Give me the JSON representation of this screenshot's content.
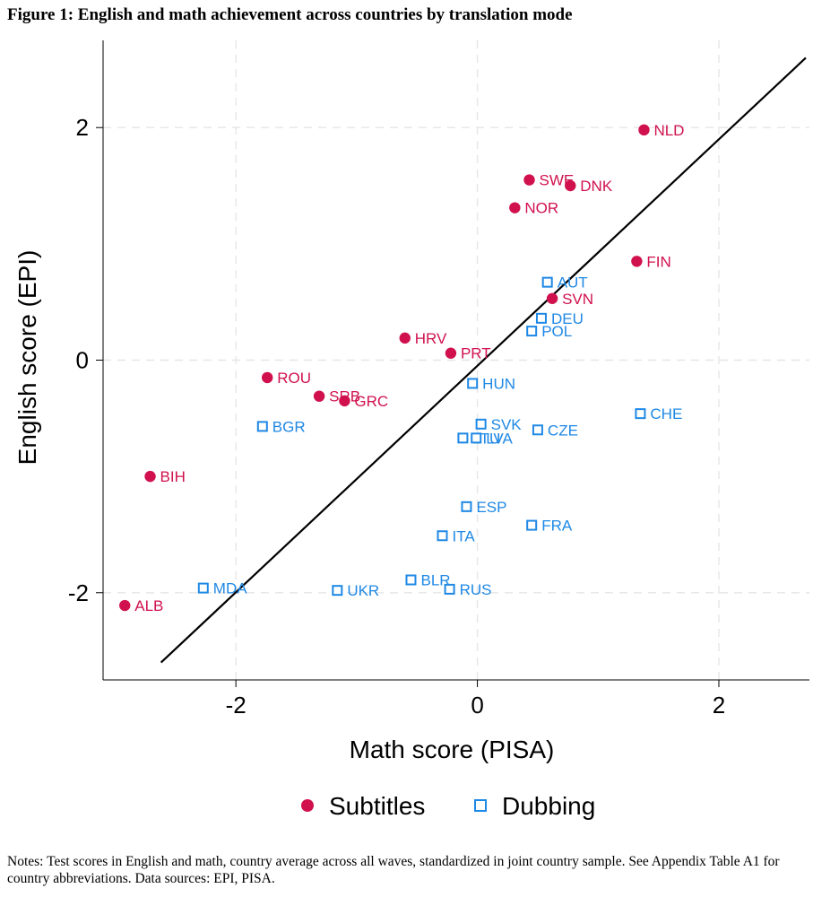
{
  "figure": {
    "title": "Figure 1: English and math achievement across countries by translation mode",
    "notes": "Notes: Test scores in English and math, country average across all waves, standardized in joint country sample. See Appendix Table A1 for country abbreviations. Data sources: EPI, PISA."
  },
  "colors": {
    "subtitles": "#d0114e",
    "dubbing": "#1e88e5",
    "grid": "#e6e6e6",
    "fit_line": "#000000"
  },
  "chart_data": {
    "type": "scatter",
    "xlabel": "Math score (PISA)",
    "ylabel": "English score (EPI)",
    "xlim": [
      -3.1,
      2.75
    ],
    "ylim": [
      -2.75,
      2.75
    ],
    "xticks": [
      -2,
      0,
      2
    ],
    "yticks": [
      -2,
      0,
      2
    ],
    "xtick_labels": [
      "-2",
      "0",
      "2"
    ],
    "ytick_labels": [
      "-2",
      "0",
      "2"
    ],
    "grid": true,
    "legend_position": "bottom",
    "fit_line": {
      "x": [
        -2.62,
        2.72
      ],
      "y": [
        -2.6,
        2.6
      ]
    },
    "series": [
      {
        "name": "Subtitles",
        "marker": "circle",
        "points": [
          {
            "label": "NLD",
            "x": 1.38,
            "y": 1.98
          },
          {
            "label": "SWE",
            "x": 0.43,
            "y": 1.55
          },
          {
            "label": "DNK",
            "x": 0.77,
            "y": 1.5
          },
          {
            "label": "NOR",
            "x": 0.31,
            "y": 1.31
          },
          {
            "label": "FIN",
            "x": 1.32,
            "y": 0.85
          },
          {
            "label": "SVN",
            "x": 0.62,
            "y": 0.53
          },
          {
            "label": "HRV",
            "x": -0.6,
            "y": 0.19
          },
          {
            "label": "PRT",
            "x": -0.22,
            "y": 0.06
          },
          {
            "label": "ROU",
            "x": -1.74,
            "y": -0.15
          },
          {
            "label": "SRB",
            "x": -1.31,
            "y": -0.31
          },
          {
            "label": "GRC",
            "x": -1.1,
            "y": -0.35
          },
          {
            "label": "BIH",
            "x": -2.71,
            "y": -1.0
          },
          {
            "label": "ALB",
            "x": -2.92,
            "y": -2.11
          }
        ]
      },
      {
        "name": "Dubbing",
        "marker": "square",
        "points": [
          {
            "label": "AUT",
            "x": 0.58,
            "y": 0.67
          },
          {
            "label": "DEU",
            "x": 0.53,
            "y": 0.36
          },
          {
            "label": "POL",
            "x": 0.45,
            "y": 0.25
          },
          {
            "label": "HUN",
            "x": -0.04,
            "y": -0.2
          },
          {
            "label": "CHE",
            "x": 1.35,
            "y": -0.46
          },
          {
            "label": "SVK",
            "x": 0.03,
            "y": -0.55
          },
          {
            "label": "CZE",
            "x": 0.5,
            "y": -0.6
          },
          {
            "label": "BGR",
            "x": -1.78,
            "y": -0.57
          },
          {
            "label": "LTU",
            "x": -0.12,
            "y": -0.67
          },
          {
            "label": "LVA",
            "x": -0.01,
            "y": -0.67
          },
          {
            "label": "ESP",
            "x": -0.09,
            "y": -1.26
          },
          {
            "label": "FRA",
            "x": 0.45,
            "y": -1.42
          },
          {
            "label": "ITA",
            "x": -0.29,
            "y": -1.51
          },
          {
            "label": "BLR",
            "x": -0.55,
            "y": -1.89
          },
          {
            "label": "RUS",
            "x": -0.23,
            "y": -1.97
          },
          {
            "label": "MDA",
            "x": -2.27,
            "y": -1.96
          },
          {
            "label": "UKR",
            "x": -1.16,
            "y": -1.98
          }
        ]
      }
    ]
  }
}
